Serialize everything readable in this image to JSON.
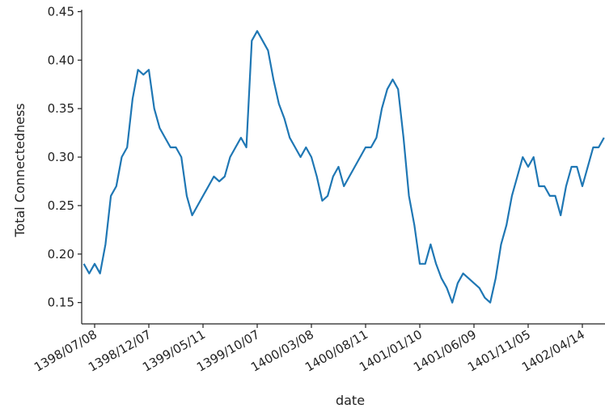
{
  "chart_data": {
    "type": "line",
    "xlabel": "date",
    "ylabel": "Total Connectedness",
    "color": "#1f77b4",
    "categories": [
      null,
      null,
      "1398/07/08",
      null,
      null,
      null,
      null,
      null,
      null,
      null,
      null,
      null,
      "1398/12/07",
      null,
      null,
      null,
      null,
      null,
      null,
      null,
      null,
      null,
      "1399/05/11",
      null,
      null,
      null,
      null,
      null,
      null,
      null,
      null,
      null,
      "1399/10/07",
      null,
      null,
      null,
      null,
      null,
      null,
      null,
      null,
      null,
      "1400/03/08",
      null,
      null,
      null,
      null,
      null,
      null,
      null,
      null,
      null,
      "1400/08/11",
      null,
      null,
      null,
      null,
      null,
      null,
      null,
      null,
      null,
      "1401/01/10",
      null,
      null,
      null,
      null,
      null,
      null,
      null,
      null,
      null,
      "1401/06/09",
      null,
      null,
      null,
      null,
      null,
      null,
      null,
      null,
      null,
      "1401/11/05",
      null,
      null,
      null,
      null,
      null,
      null,
      null,
      null,
      null,
      "1402/04/14",
      null,
      null,
      null,
      null
    ],
    "values": [
      0.19,
      0.18,
      0.19,
      0.18,
      0.21,
      0.26,
      0.27,
      0.3,
      0.31,
      0.36,
      0.39,
      0.385,
      0.39,
      0.35,
      0.33,
      0.32,
      0.31,
      0.31,
      0.3,
      0.26,
      0.24,
      0.25,
      0.26,
      0.27,
      0.28,
      0.275,
      0.28,
      0.3,
      0.31,
      0.32,
      0.31,
      0.42,
      0.43,
      0.42,
      0.41,
      0.38,
      0.355,
      0.34,
      0.32,
      0.31,
      0.3,
      0.31,
      0.3,
      0.28,
      0.255,
      0.26,
      0.28,
      0.29,
      0.27,
      0.28,
      0.29,
      0.3,
      0.31,
      0.31,
      0.32,
      0.35,
      0.37,
      0.38,
      0.37,
      0.32,
      0.26,
      0.23,
      0.19,
      0.19,
      0.21,
      0.19,
      0.175,
      0.165,
      0.15,
      0.17,
      0.18,
      0.175,
      0.17,
      0.165,
      0.155,
      0.15,
      0.175,
      0.21,
      0.23,
      0.26,
      0.28,
      0.3,
      0.29,
      0.3,
      0.27,
      0.27,
      0.26,
      0.26,
      0.24,
      0.27,
      0.29,
      0.29,
      0.27,
      0.29,
      0.31,
      0.31,
      0.32
    ],
    "ylim": [
      0.128,
      0.452
    ],
    "yticks": [
      0.15,
      {
        "value": 0.2,
        "label": "0.20"
      },
      0.25,
      {
        "value": 0.3,
        "label": "0.30"
      },
      0.35,
      {
        "value": 0.4,
        "label": "0.40"
      },
      0.45
    ]
  }
}
